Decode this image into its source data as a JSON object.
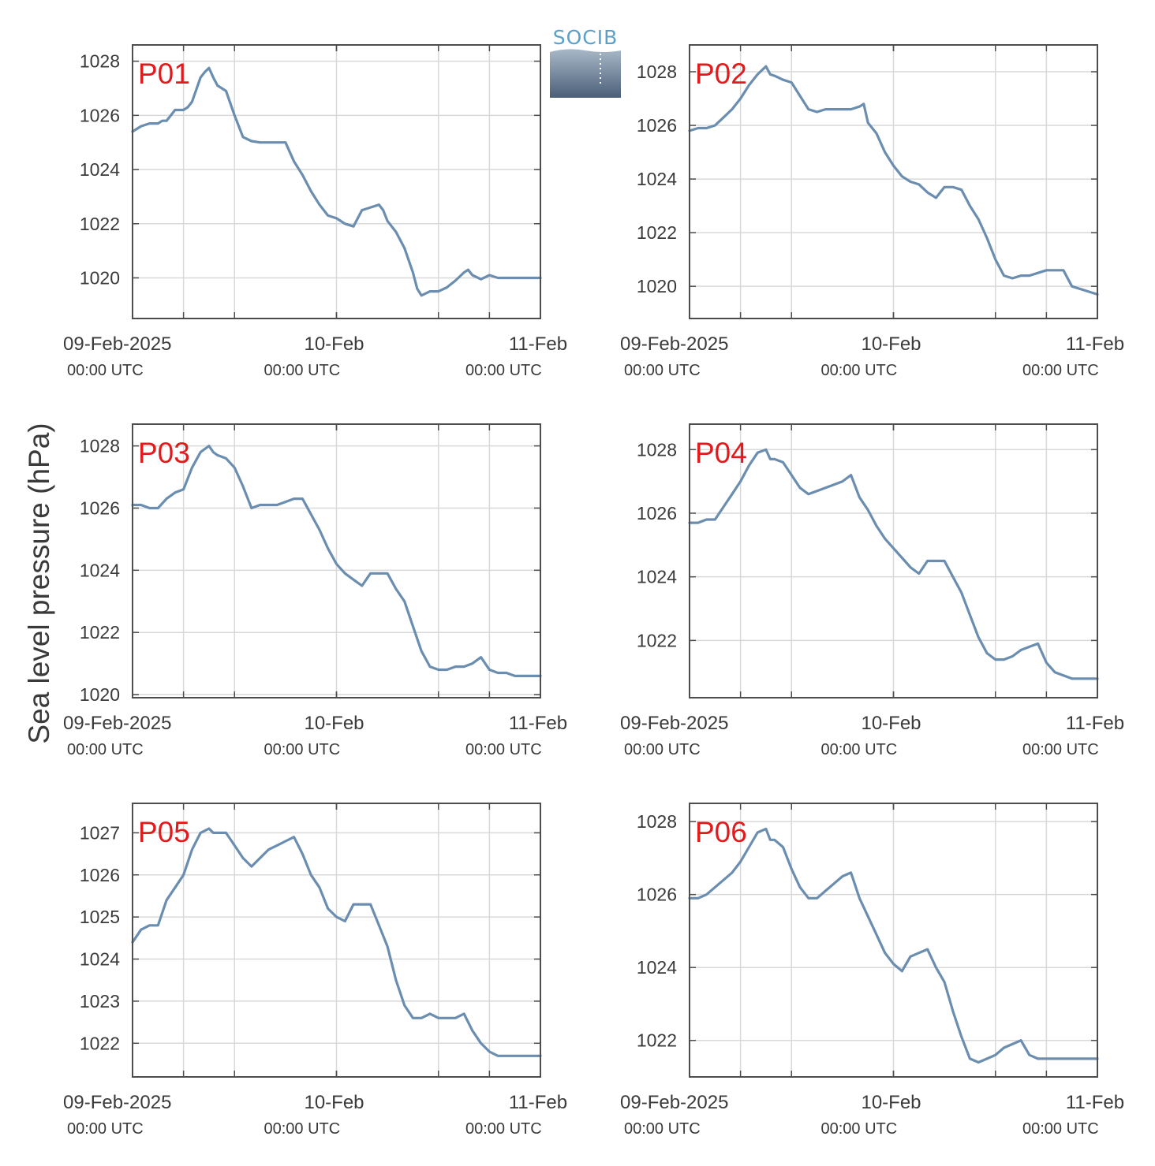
{
  "figure": {
    "ylabel": "Sea level pressure (hPa)",
    "logo_text": "SOCIB",
    "colors": {
      "line": "#6a8db0",
      "label": "#e31a1c",
      "grid": "#d9d9d9",
      "axis": "#4d4d4d",
      "text": "#3a3a3a"
    },
    "x_ticks": [
      {
        "main": "09-Feb-2025",
        "sub": "00:00 UTC"
      },
      {
        "main": "10-Feb",
        "sub": "00:00 UTC"
      },
      {
        "main": "11-Feb",
        "sub": "00:00 UTC"
      }
    ]
  },
  "chart_data": [
    {
      "type": "line",
      "title": "P01",
      "x_unit": "hours since 09-Feb-2025 00:00 UTC",
      "xlim": [
        0,
        48
      ],
      "ylim": [
        1018.5,
        1028.6
      ],
      "yticks": [
        1020,
        1022,
        1024,
        1026,
        1028
      ],
      "series": [
        {
          "x": [
            0,
            1,
            2,
            3,
            3.5,
            4,
            5,
            6,
            6.5,
            7,
            8,
            8.5,
            9,
            9.5,
            10,
            11,
            12,
            13,
            14,
            15,
            16,
            17,
            18,
            19,
            20,
            21,
            22,
            23,
            24,
            25,
            26,
            27,
            28,
            29,
            29.5,
            30,
            31,
            32,
            33,
            33.5,
            34,
            35,
            36,
            37,
            38,
            39,
            39.5,
            40,
            41,
            42,
            43,
            43.5,
            44,
            45,
            46,
            47,
            48
          ],
          "y": [
            1025.4,
            1025.6,
            1025.7,
            1025.7,
            1025.8,
            1025.8,
            1026.2,
            1026.2,
            1026.3,
            1026.5,
            1027.4,
            1027.6,
            1027.75,
            1027.4,
            1027.1,
            1026.9,
            1026.0,
            1025.2,
            1025.05,
            1025.0,
            1025.0,
            1025.0,
            1025.0,
            1024.3,
            1023.8,
            1023.2,
            1022.7,
            1022.3,
            1022.2,
            1022.0,
            1021.9,
            1022.5,
            1022.6,
            1022.7,
            1022.5,
            1022.1,
            1021.7,
            1021.1,
            1020.2,
            1019.6,
            1019.35,
            1019.5,
            1019.5,
            1019.65,
            1019.9,
            1020.2,
            1020.3,
            1020.1,
            1019.95,
            1020.1,
            1020.0,
            1020.0,
            1020.0,
            1020.0,
            1020.0,
            1020.0,
            1020.0
          ]
        }
      ]
    },
    {
      "type": "line",
      "title": "P02",
      "x_unit": "hours since 09-Feb-2025 00:00 UTC",
      "xlim": [
        0,
        48
      ],
      "ylim": [
        1018.8,
        1029.0
      ],
      "yticks": [
        1020,
        1022,
        1024,
        1026,
        1028
      ],
      "series": [
        {
          "x": [
            0,
            1,
            2,
            3,
            4,
            5,
            6,
            7,
            8,
            9,
            9.5,
            10,
            11,
            12,
            13,
            14,
            15,
            16,
            17,
            18,
            19,
            20,
            20.5,
            21,
            22,
            23,
            24,
            25,
            26,
            27,
            28,
            29,
            30,
            31,
            32,
            33,
            34,
            35,
            36,
            37,
            38,
            39,
            40,
            41,
            42,
            43,
            44,
            45,
            46,
            47,
            48
          ],
          "y": [
            1025.8,
            1025.9,
            1025.9,
            1026.0,
            1026.3,
            1026.6,
            1027.0,
            1027.5,
            1027.9,
            1028.2,
            1027.9,
            1027.85,
            1027.7,
            1027.6,
            1027.1,
            1026.6,
            1026.5,
            1026.6,
            1026.6,
            1026.6,
            1026.6,
            1026.7,
            1026.8,
            1026.1,
            1025.7,
            1025.0,
            1024.5,
            1024.1,
            1023.9,
            1023.8,
            1023.5,
            1023.3,
            1023.7,
            1023.7,
            1023.6,
            1023.0,
            1022.5,
            1021.8,
            1021.0,
            1020.4,
            1020.3,
            1020.4,
            1020.4,
            1020.5,
            1020.6,
            1020.6,
            1020.6,
            1020.0,
            1019.9,
            1019.8,
            1019.7
          ]
        }
      ]
    },
    {
      "type": "line",
      "title": "P03",
      "x_unit": "hours since 09-Feb-2025 00:00 UTC",
      "xlim": [
        0,
        48
      ],
      "ylim": [
        1019.9,
        1028.7
      ],
      "yticks": [
        1020,
        1022,
        1024,
        1026,
        1028
      ],
      "series": [
        {
          "x": [
            0,
            1,
            2,
            3,
            4,
            5,
            6,
            7,
            8,
            9,
            9.5,
            10,
            11,
            12,
            13,
            14,
            15,
            16,
            17,
            18,
            19,
            20,
            21,
            22,
            23,
            24,
            25,
            26,
            27,
            28,
            29,
            30,
            31,
            32,
            33,
            34,
            35,
            36,
            37,
            38,
            39,
            40,
            41,
            42,
            43,
            44,
            45,
            46,
            47,
            48
          ],
          "y": [
            1026.1,
            1026.1,
            1026.0,
            1026.0,
            1026.3,
            1026.5,
            1026.6,
            1027.3,
            1027.8,
            1028.0,
            1027.8,
            1027.7,
            1027.6,
            1027.3,
            1026.7,
            1026.0,
            1026.1,
            1026.1,
            1026.1,
            1026.2,
            1026.3,
            1026.3,
            1025.8,
            1025.3,
            1024.7,
            1024.2,
            1023.9,
            1023.7,
            1023.5,
            1023.9,
            1023.9,
            1023.9,
            1023.4,
            1023.0,
            1022.2,
            1021.4,
            1020.9,
            1020.8,
            1020.8,
            1020.9,
            1020.9,
            1021.0,
            1021.2,
            1020.8,
            1020.7,
            1020.7,
            1020.6,
            1020.6,
            1020.6,
            1020.6
          ]
        }
      ]
    },
    {
      "type": "line",
      "title": "P04",
      "x_unit": "hours since 09-Feb-2025 00:00 UTC",
      "xlim": [
        0,
        48
      ],
      "ylim": [
        1020.2,
        1028.8
      ],
      "yticks": [
        1022,
        1024,
        1026,
        1028
      ],
      "series": [
        {
          "x": [
            0,
            1,
            2,
            3,
            4,
            5,
            6,
            7,
            8,
            9,
            9.5,
            10,
            11,
            12,
            13,
            14,
            15,
            16,
            17,
            18,
            19,
            20,
            21,
            22,
            23,
            24,
            25,
            26,
            27,
            28,
            29,
            30,
            31,
            32,
            33,
            34,
            35,
            36,
            37,
            38,
            39,
            40,
            41,
            42,
            43,
            44,
            45,
            46,
            47,
            48
          ],
          "y": [
            1025.7,
            1025.7,
            1025.8,
            1025.8,
            1026.2,
            1026.6,
            1027.0,
            1027.5,
            1027.9,
            1028.0,
            1027.7,
            1027.7,
            1027.6,
            1027.2,
            1026.8,
            1026.6,
            1026.7,
            1026.8,
            1026.9,
            1027.0,
            1027.2,
            1026.5,
            1026.1,
            1025.6,
            1025.2,
            1024.9,
            1024.6,
            1024.3,
            1024.1,
            1024.5,
            1024.5,
            1024.5,
            1024.0,
            1023.5,
            1022.8,
            1022.1,
            1021.6,
            1021.4,
            1021.4,
            1021.5,
            1021.7,
            1021.8,
            1021.9,
            1021.3,
            1021.0,
            1020.9,
            1020.8,
            1020.8,
            1020.8,
            1020.8
          ]
        }
      ]
    },
    {
      "type": "line",
      "title": "P05",
      "x_unit": "hours since 09-Feb-2025 00:00 UTC",
      "xlim": [
        0,
        48
      ],
      "ylim": [
        1021.2,
        1027.7
      ],
      "yticks": [
        1022,
        1023,
        1024,
        1025,
        1026,
        1027
      ],
      "series": [
        {
          "x": [
            0,
            1,
            2,
            3,
            4,
            5,
            6,
            7,
            8,
            9,
            9.5,
            10,
            11,
            12,
            13,
            14,
            15,
            16,
            17,
            18,
            19,
            20,
            21,
            22,
            23,
            24,
            25,
            26,
            27,
            28,
            29,
            30,
            31,
            32,
            33,
            34,
            35,
            36,
            37,
            38,
            39,
            40,
            41,
            42,
            43,
            44,
            45,
            46,
            47,
            48
          ],
          "y": [
            1024.4,
            1024.7,
            1024.8,
            1024.8,
            1025.4,
            1025.7,
            1026.0,
            1026.6,
            1027.0,
            1027.1,
            1027.0,
            1027.0,
            1027.0,
            1026.7,
            1026.4,
            1026.2,
            1026.4,
            1026.6,
            1026.7,
            1026.8,
            1026.9,
            1026.5,
            1026.0,
            1025.7,
            1025.2,
            1025.0,
            1024.9,
            1025.3,
            1025.3,
            1025.3,
            1024.8,
            1024.3,
            1023.5,
            1022.9,
            1022.6,
            1022.6,
            1022.7,
            1022.6,
            1022.6,
            1022.6,
            1022.7,
            1022.3,
            1022.0,
            1021.8,
            1021.7,
            1021.7,
            1021.7,
            1021.7,
            1021.7,
            1021.7
          ]
        }
      ]
    },
    {
      "type": "line",
      "title": "P06",
      "x_unit": "hours since 09-Feb-2025 00:00 UTC",
      "xlim": [
        0,
        48
      ],
      "ylim": [
        1021.0,
        1028.5
      ],
      "yticks": [
        1022,
        1024,
        1026,
        1028
      ],
      "series": [
        {
          "x": [
            0,
            1,
            2,
            3,
            4,
            5,
            6,
            7,
            8,
            9,
            9.5,
            10,
            11,
            12,
            13,
            14,
            15,
            16,
            17,
            18,
            19,
            20,
            21,
            22,
            23,
            24,
            25,
            26,
            27,
            28,
            29,
            30,
            31,
            32,
            33,
            34,
            35,
            36,
            37,
            38,
            39,
            40,
            41,
            42,
            43,
            44,
            45,
            46,
            47,
            48
          ],
          "y": [
            1025.9,
            1025.9,
            1026.0,
            1026.2,
            1026.4,
            1026.6,
            1026.9,
            1027.3,
            1027.7,
            1027.8,
            1027.5,
            1027.5,
            1027.3,
            1026.7,
            1026.2,
            1025.9,
            1025.9,
            1026.1,
            1026.3,
            1026.5,
            1026.6,
            1025.9,
            1025.4,
            1024.9,
            1024.4,
            1024.1,
            1023.9,
            1024.3,
            1024.4,
            1024.5,
            1024.0,
            1023.6,
            1022.8,
            1022.1,
            1021.5,
            1021.4,
            1021.5,
            1021.6,
            1021.8,
            1021.9,
            1022.0,
            1021.6,
            1021.5,
            1021.5,
            1021.5,
            1021.5,
            1021.5,
            1021.5,
            1021.5,
            1021.5
          ]
        }
      ]
    }
  ]
}
